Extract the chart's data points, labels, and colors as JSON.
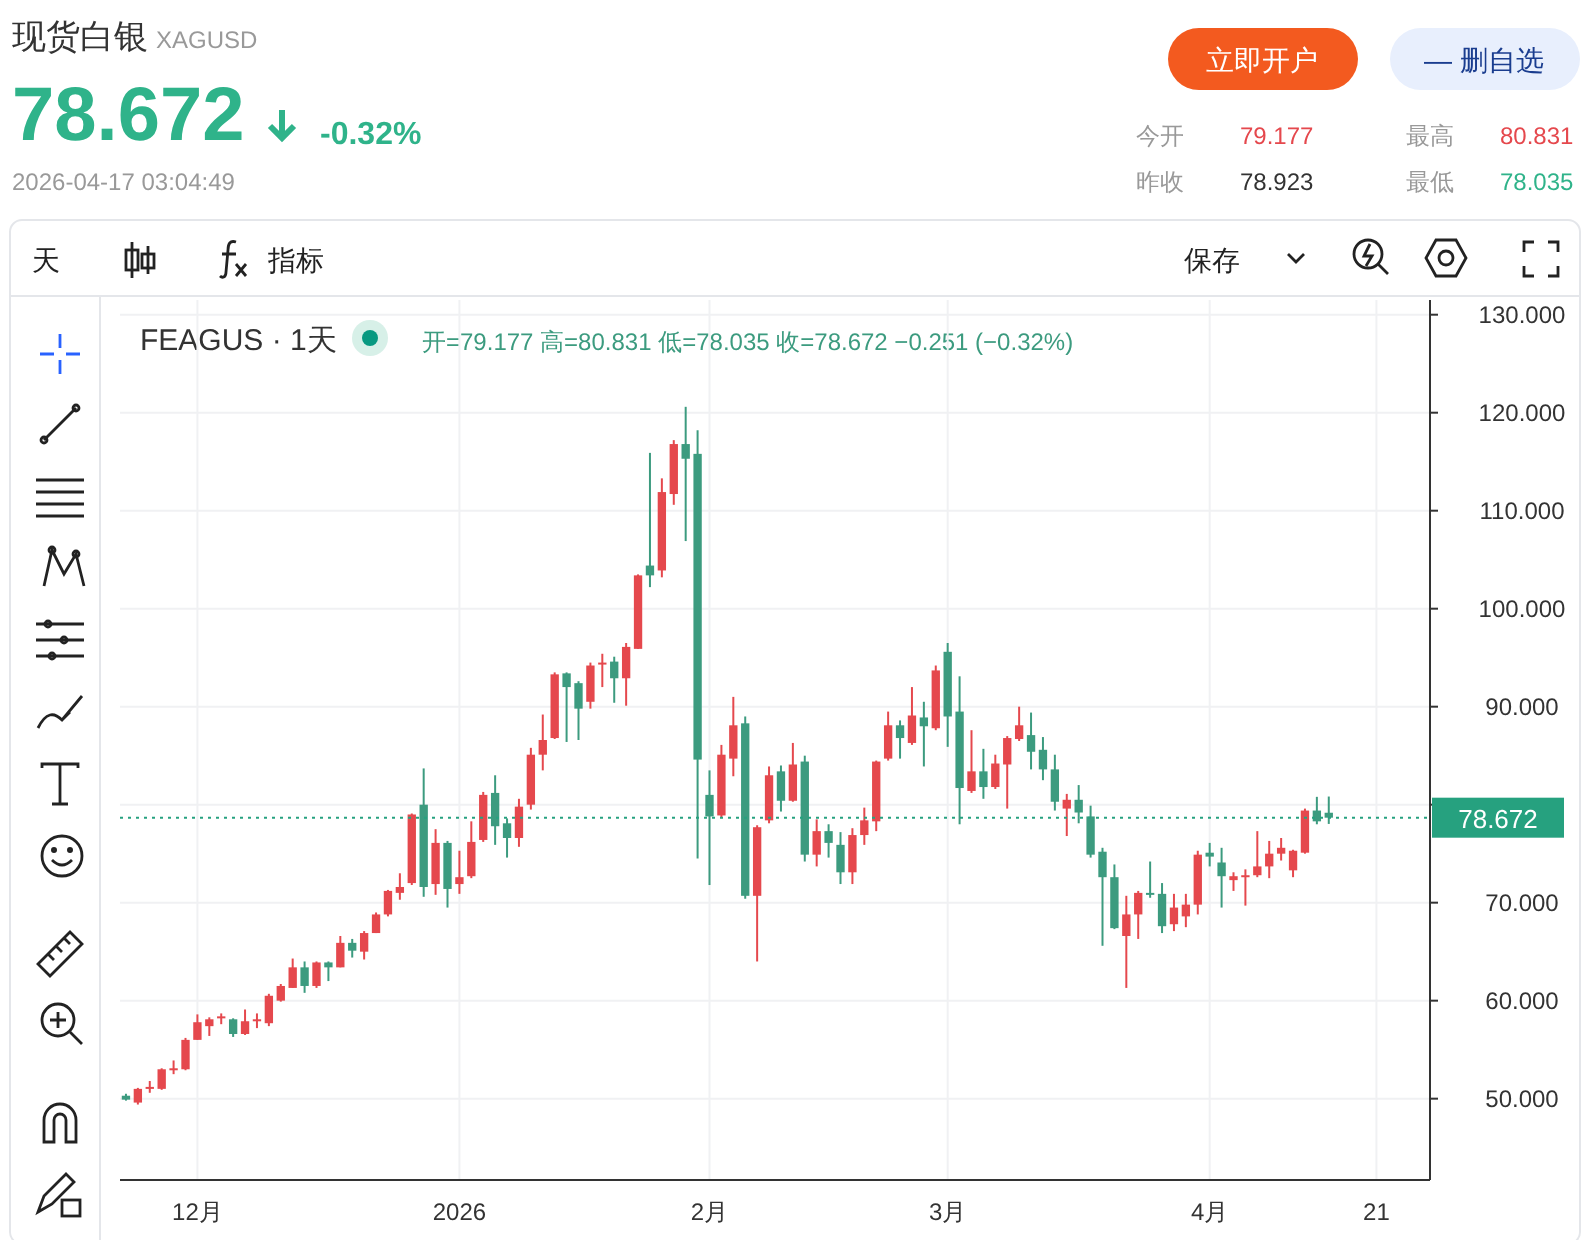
{
  "chart_data": {
    "type": "candlestick",
    "title": "现货白银",
    "subtitle": "XAGUSD",
    "categories": [
      null,
      null,
      null,
      null,
      null,
      null,
      "12月",
      null,
      null,
      null,
      null,
      null,
      null,
      null,
      null,
      null,
      null,
      null,
      null,
      null,
      null,
      null,
      null,
      null,
      null,
      null,
      null,
      null,
      "2026",
      null,
      null,
      null,
      null,
      null,
      null,
      null,
      null,
      null,
      null,
      null,
      null,
      null,
      null,
      null,
      null,
      null,
      null,
      null,
      null,
      "2月",
      null,
      null,
      null,
      null,
      null,
      null,
      null,
      null,
      null,
      null,
      null,
      null,
      null,
      null,
      null,
      null,
      null,
      null,
      null,
      "3月",
      null,
      null,
      null,
      null,
      null,
      null,
      null,
      null,
      null,
      null,
      null,
      null,
      null,
      null,
      null,
      null,
      null,
      null,
      null,
      null,
      null,
      "4月",
      null,
      null,
      null,
      null,
      null,
      null,
      null,
      null,
      null,
      null,
      null,
      null,
      null,
      "21",
      null,
      null,
      null,
      null
    ],
    "ohlc": [
      [
        50.3,
        50.5,
        49.8,
        49.9
      ],
      [
        49.6,
        51.1,
        49.4,
        51.0
      ],
      [
        51.0,
        51.8,
        50.6,
        51.2
      ],
      [
        51.0,
        53.1,
        50.9,
        53.0
      ],
      [
        52.9,
        53.9,
        52.5,
        53.1
      ],
      [
        53.0,
        56.2,
        52.9,
        56.0
      ],
      [
        56.0,
        58.6,
        56.0,
        57.8
      ],
      [
        57.4,
        58.3,
        56.4,
        58.1
      ],
      [
        58.2,
        58.7,
        57.6,
        58.4
      ],
      [
        58.1,
        58.2,
        56.3,
        56.6
      ],
      [
        56.6,
        59.1,
        56.5,
        57.9
      ],
      [
        57.9,
        58.7,
        57.2,
        58.1
      ],
      [
        57.7,
        60.7,
        57.4,
        60.5
      ],
      [
        60.0,
        61.7,
        59.9,
        61.5
      ],
      [
        61.3,
        64.3,
        61.3,
        63.4
      ],
      [
        63.4,
        64.0,
        60.8,
        61.5
      ],
      [
        61.5,
        64.0,
        61.3,
        63.9
      ],
      [
        63.9,
        64.0,
        62.0,
        63.4
      ],
      [
        63.4,
        66.6,
        63.4,
        65.9
      ],
      [
        65.9,
        66.3,
        64.4,
        65.1
      ],
      [
        65.0,
        67.1,
        64.2,
        66.9
      ],
      [
        66.9,
        69.0,
        66.9,
        68.8
      ],
      [
        68.8,
        71.3,
        68.6,
        71.2
      ],
      [
        71.0,
        73.0,
        70.3,
        71.6
      ],
      [
        72.0,
        79.1,
        71.8,
        79.0
      ],
      [
        80.0,
        83.7,
        70.6,
        71.6
      ],
      [
        71.9,
        77.5,
        70.8,
        76.1
      ],
      [
        76.1,
        76.3,
        69.5,
        71.4
      ],
      [
        71.9,
        75.3,
        70.9,
        72.6
      ],
      [
        72.7,
        78.3,
        72.5,
        76.2
      ],
      [
        76.4,
        81.3,
        76.2,
        81.0
      ],
      [
        81.2,
        83.0,
        75.9,
        77.8
      ],
      [
        78.1,
        78.6,
        74.6,
        76.6
      ],
      [
        76.6,
        80.6,
        75.7,
        79.8
      ],
      [
        80.0,
        85.8,
        79.5,
        85.1
      ],
      [
        85.1,
        89.2,
        83.5,
        86.6
      ],
      [
        86.8,
        93.5,
        86.7,
        93.3
      ],
      [
        93.4,
        93.5,
        86.4,
        92.0
      ],
      [
        92.4,
        92.6,
        86.6,
        89.8
      ],
      [
        90.5,
        94.5,
        89.8,
        94.2
      ],
      [
        94.3,
        95.4,
        92.0,
        94.5
      ],
      [
        94.6,
        95.1,
        90.4,
        92.9
      ],
      [
        92.9,
        96.5,
        90.1,
        96.1
      ],
      [
        95.9,
        103.5,
        95.9,
        103.4
      ],
      [
        104.4,
        115.9,
        102.2,
        103.4
      ],
      [
        103.9,
        113.3,
        103.2,
        111.9
      ],
      [
        111.7,
        117.2,
        110.6,
        116.8
      ],
      [
        116.8,
        120.6,
        106.9,
        115.3
      ],
      [
        115.8,
        118.2,
        74.5,
        84.6
      ],
      [
        81.0,
        83.5,
        71.8,
        78.8
      ],
      [
        78.9,
        86.1,
        78.7,
        85.1
      ],
      [
        84.7,
        91.0,
        82.9,
        88.1
      ],
      [
        88.3,
        89.0,
        70.4,
        70.7
      ],
      [
        70.7,
        77.9,
        64.0,
        77.7
      ],
      [
        78.4,
        83.9,
        78.1,
        83.0
      ],
      [
        83.4,
        84.0,
        79.3,
        80.4
      ],
      [
        80.4,
        86.3,
        80.3,
        84.1
      ],
      [
        84.4,
        85.0,
        74.2,
        74.9
      ],
      [
        74.9,
        78.5,
        73.7,
        77.3
      ],
      [
        77.3,
        78.0,
        74.6,
        76.1
      ],
      [
        75.9,
        77.2,
        71.9,
        73.1
      ],
      [
        73.1,
        77.6,
        71.9,
        76.9
      ],
      [
        76.9,
        79.7,
        75.9,
        78.4
      ],
      [
        78.3,
        84.5,
        77.3,
        84.4
      ],
      [
        84.7,
        89.5,
        84.5,
        88.1
      ],
      [
        88.1,
        88.6,
        84.7,
        86.8
      ],
      [
        86.3,
        92.0,
        86.1,
        89.1
      ],
      [
        88.9,
        90.5,
        83.9,
        88.0
      ],
      [
        87.8,
        94.2,
        87.6,
        93.7
      ],
      [
        95.6,
        96.5,
        85.9,
        89.0
      ],
      [
        89.5,
        93.1,
        78.0,
        81.7
      ],
      [
        81.4,
        87.6,
        81.2,
        83.4
      ],
      [
        83.4,
        85.7,
        80.6,
        81.8
      ],
      [
        81.8,
        85.1,
        81.6,
        84.2
      ],
      [
        84.1,
        87.0,
        79.6,
        86.8
      ],
      [
        86.7,
        90.0,
        86.5,
        88.1
      ],
      [
        87.1,
        89.4,
        83.6,
        85.4
      ],
      [
        85.6,
        86.9,
        82.5,
        83.6
      ],
      [
        83.6,
        85.1,
        79.4,
        80.3
      ],
      [
        79.6,
        81.1,
        76.8,
        80.5
      ],
      [
        80.5,
        82.0,
        78.1,
        79.2
      ],
      [
        78.8,
        79.9,
        74.6,
        74.9
      ],
      [
        75.2,
        75.6,
        65.6,
        72.6
      ],
      [
        72.6,
        73.9,
        67.3,
        67.4
      ],
      [
        66.6,
        70.7,
        61.3,
        68.8
      ],
      [
        68.8,
        71.2,
        66.3,
        71.0
      ],
      [
        71.0,
        74.2,
        70.5,
        70.8
      ],
      [
        70.9,
        72.0,
        66.9,
        67.6
      ],
      [
        67.8,
        70.9,
        67.1,
        69.5
      ],
      [
        68.6,
        70.9,
        67.5,
        69.8
      ],
      [
        69.8,
        75.3,
        68.8,
        74.9
      ],
      [
        75.1,
        76.1,
        73.7,
        74.7
      ],
      [
        74.1,
        75.6,
        69.5,
        72.7
      ],
      [
        72.3,
        73.1,
        71.2,
        72.7
      ],
      [
        72.6,
        73.4,
        69.7,
        72.8
      ],
      [
        72.8,
        77.3,
        72.6,
        73.7
      ],
      [
        73.7,
        76.3,
        72.5,
        75.0
      ],
      [
        75.0,
        76.6,
        74.3,
        75.6
      ],
      [
        73.3,
        75.4,
        72.6,
        75.3
      ],
      [
        75.1,
        79.6,
        75.0,
        79.4
      ],
      [
        79.4,
        80.8,
        78.0,
        78.3
      ],
      [
        79.177,
        80.831,
        78.035,
        78.672
      ],
      null,
      null,
      null,
      null,
      null,
      null,
      null,
      null
    ],
    "colors": [
      "#3c9b7f",
      "#e5484d",
      "#e5484d",
      "#e5484d",
      "#e5484d",
      "#e5484d",
      "#e5484d",
      "#e5484d",
      "#e5484d",
      "#3c9b7f",
      "#e5484d",
      "#e5484d",
      "#e5484d",
      "#e5484d",
      "#e5484d",
      "#3c9b7f",
      "#e5484d",
      "#3c9b7f",
      "#e5484d",
      "#3c9b7f",
      "#e5484d",
      "#e5484d",
      "#e5484d",
      "#e5484d",
      "#e5484d",
      "#3c9b7f",
      "#e5484d",
      "#3c9b7f",
      "#e5484d",
      "#e5484d",
      "#e5484d",
      "#3c9b7f",
      "#3c9b7f",
      "#e5484d",
      "#e5484d",
      "#e5484d",
      "#e5484d",
      "#3c9b7f",
      "#3c9b7f",
      "#e5484d",
      "#e5484d",
      "#3c9b7f",
      "#e5484d",
      "#e5484d",
      "#3c9b7f",
      "#e5484d",
      "#e5484d",
      "#3c9b7f",
      "#3c9b7f",
      "#3c9b7f",
      "#e5484d",
      "#e5484d",
      "#3c9b7f",
      "#e5484d",
      "#e5484d",
      "#3c9b7f",
      "#e5484d",
      "#3c9b7f",
      "#e5484d",
      "#3c9b7f",
      "#3c9b7f",
      "#e5484d",
      "#e5484d",
      "#e5484d",
      "#e5484d",
      "#3c9b7f",
      "#e5484d",
      "#3c9b7f",
      "#e5484d",
      "#3c9b7f",
      "#3c9b7f",
      "#e5484d",
      "#3c9b7f",
      "#e5484d",
      "#e5484d",
      "#e5484d",
      "#3c9b7f",
      "#3c9b7f",
      "#3c9b7f",
      "#e5484d",
      "#3c9b7f",
      "#3c9b7f",
      "#3c9b7f",
      "#3c9b7f",
      "#e5484d",
      "#e5484d",
      "#3c9b7f",
      "#3c9b7f",
      "#e5484d",
      "#e5484d",
      "#e5484d",
      "#3c9b7f",
      "#3c9b7f",
      "#e5484d",
      "#e5484d",
      "#e5484d",
      "#e5484d",
      "#e5484d",
      "#e5484d",
      "#e5484d",
      "#3c9b7f",
      "#3c9b7f",
      null,
      null,
      null,
      null,
      null,
      null,
      null,
      null
    ],
    "ylim": [
      41.7,
      131.5
    ],
    "yticks": [
      {
        "value": 50,
        "label": "50.000"
      },
      {
        "value": 60,
        "label": "60.000"
      },
      {
        "value": 70,
        "label": "70.000"
      },
      {
        "value": 80,
        "label": null
      },
      {
        "value": 90,
        "label": "90.000"
      },
      {
        "value": 100,
        "label": "100.000"
      },
      {
        "value": 110,
        "label": "110.000"
      },
      {
        "value": 120,
        "label": "120.000"
      },
      {
        "value": 130,
        "label": "130.000"
      }
    ],
    "grid": true,
    "ref_lines": [
      {
        "axis": "y",
        "value": 78.672,
        "label": "78.672",
        "color": "#26a17f",
        "line_style": "dotted"
      }
    ],
    "annotations": [
      "78.672",
      "-0.32%",
      "2026-04-17 03:04:49",
      "立即开户",
      "— 删自选",
      "今开",
      "79.177",
      "最高",
      "80.831",
      "昨收",
      "78.923",
      "最低",
      "78.035",
      "天",
      "指标",
      "保存",
      "FEAGUS · 1天",
      "开=79.177 高=80.831 低=78.035 收=78.672 −0.251 (−0.32%)"
    ]
  }
}
